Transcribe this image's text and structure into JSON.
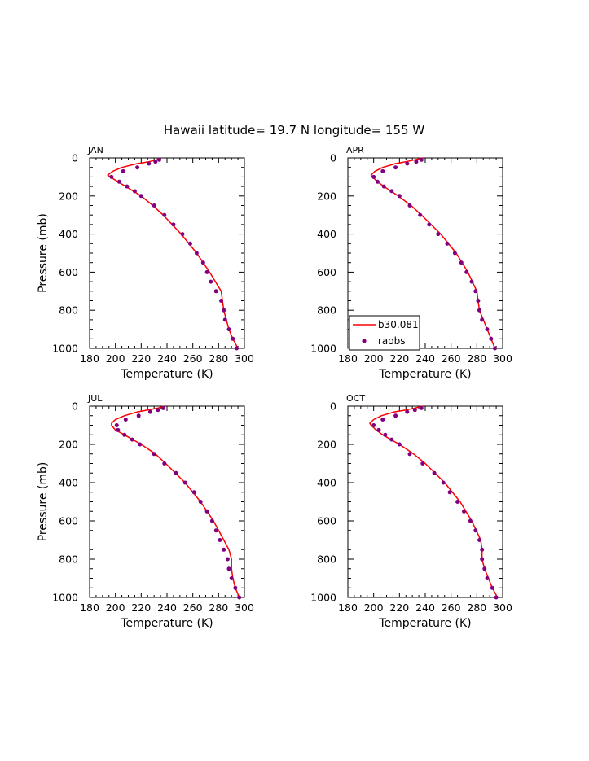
{
  "title": "Hawaii  latitude= 19.7 N longitude= 155 W",
  "colors": {
    "model": "#ff0000",
    "obs": "#800080",
    "axis": "#000000"
  },
  "legend": {
    "model_label": "b30.081",
    "obs_label": "raobs"
  },
  "chart_data": [
    {
      "type": "line",
      "panel": "JAN",
      "xlabel": "Temperature (K)",
      "ylabel": "Pressure (mb)",
      "xlim": [
        180,
        300
      ],
      "ylim": [
        1000,
        0
      ],
      "xticks": [
        180,
        200,
        220,
        240,
        260,
        280,
        300
      ],
      "yticks": [
        0,
        200,
        400,
        600,
        800,
        1000
      ],
      "series": [
        {
          "name": "b30.081",
          "kind": "line",
          "p": [
            0,
            10,
            20,
            30,
            50,
            70,
            90,
            100,
            125,
            150,
            200,
            250,
            300,
            400,
            500,
            600,
            700,
            750,
            800,
            850,
            900,
            950,
            1000
          ],
          "t": [
            235,
            232,
            226,
            217,
            205,
            198,
            194,
            196,
            202,
            208,
            220,
            229,
            237,
            251,
            263,
            273,
            282,
            283,
            284,
            286,
            288,
            291,
            295
          ]
        },
        {
          "name": "raobs",
          "kind": "scatter",
          "p": [
            10,
            20,
            30,
            50,
            70,
            100,
            125,
            150,
            175,
            200,
            250,
            300,
            350,
            400,
            450,
            500,
            550,
            600,
            650,
            700,
            750,
            800,
            850,
            900,
            950,
            1000
          ],
          "t": [
            234,
            231,
            226,
            217,
            206,
            197,
            203,
            209,
            215,
            220,
            230,
            238,
            245,
            252,
            258,
            263,
            268,
            271,
            274,
            278,
            282,
            284,
            285,
            288,
            291,
            294
          ]
        }
      ]
    },
    {
      "type": "line",
      "panel": "APR",
      "xlabel": "Temperature (K)",
      "ylabel": "Pressure (mb)",
      "xlim": [
        180,
        300
      ],
      "ylim": [
        1000,
        0
      ],
      "xticks": [
        180,
        200,
        220,
        240,
        260,
        280,
        300
      ],
      "yticks": [
        0,
        200,
        400,
        600,
        800,
        1000
      ],
      "series": [
        {
          "name": "b30.081",
          "kind": "line",
          "p": [
            0,
            10,
            20,
            30,
            50,
            70,
            90,
            100,
            125,
            150,
            200,
            250,
            300,
            400,
            500,
            600,
            700,
            750,
            800,
            850,
            900,
            950,
            1000
          ],
          "t": [
            238,
            232,
            225,
            217,
            207,
            201,
            198,
            199,
            203,
            208,
            219,
            229,
            237,
            252,
            264,
            273,
            280,
            281,
            282,
            285,
            288,
            291,
            294
          ]
        },
        {
          "name": "raobs",
          "kind": "scatter",
          "p": [
            10,
            20,
            30,
            50,
            70,
            100,
            125,
            150,
            175,
            200,
            250,
            300,
            350,
            400,
            450,
            500,
            550,
            600,
            650,
            700,
            750,
            800,
            850,
            900,
            950,
            1000
          ],
          "t": [
            237,
            233,
            226,
            217,
            207,
            200,
            203,
            208,
            214,
            220,
            228,
            236,
            243,
            250,
            257,
            263,
            268,
            272,
            276,
            279,
            281,
            282,
            284,
            288,
            291,
            294
          ]
        }
      ]
    },
    {
      "type": "line",
      "panel": "JUL",
      "xlabel": "Temperature (K)",
      "ylabel": "Pressure (mb)",
      "xlim": [
        180,
        300
      ],
      "ylim": [
        1000,
        0
      ],
      "xticks": [
        180,
        200,
        220,
        240,
        260,
        280,
        300
      ],
      "yticks": [
        0,
        200,
        400,
        600,
        800,
        1000
      ],
      "series": [
        {
          "name": "b30.081",
          "kind": "line",
          "p": [
            0,
            10,
            20,
            30,
            50,
            70,
            90,
            100,
            125,
            150,
            200,
            250,
            300,
            400,
            500,
            600,
            700,
            750,
            800,
            850,
            900,
            950,
            1000
          ],
          "t": [
            238,
            233,
            225,
            217,
            207,
            200,
            197,
            197,
            200,
            207,
            220,
            231,
            239,
            254,
            266,
            276,
            284,
            288,
            290,
            290,
            291,
            293,
            296
          ]
        },
        {
          "name": "raobs",
          "kind": "scatter",
          "p": [
            10,
            20,
            30,
            50,
            70,
            100,
            125,
            150,
            175,
            200,
            250,
            300,
            350,
            400,
            450,
            500,
            550,
            600,
            650,
            700,
            750,
            800,
            850,
            900,
            950,
            1000
          ],
          "t": [
            237,
            233,
            227,
            218,
            208,
            201,
            202,
            207,
            213,
            219,
            230,
            238,
            247,
            254,
            261,
            266,
            271,
            275,
            278,
            281,
            284,
            287,
            288,
            290,
            293,
            296
          ]
        }
      ]
    },
    {
      "type": "line",
      "panel": "OCT",
      "xlabel": "Temperature (K)",
      "ylabel": "Pressure (mb)",
      "xlim": [
        180,
        300
      ],
      "ylim": [
        1000,
        0
      ],
      "xticks": [
        180,
        200,
        220,
        240,
        260,
        280,
        300
      ],
      "yticks": [
        0,
        200,
        400,
        600,
        800,
        1000
      ],
      "series": [
        {
          "name": "b30.081",
          "kind": "line",
          "p": [
            0,
            10,
            20,
            30,
            50,
            70,
            90,
            100,
            125,
            150,
            200,
            250,
            300,
            400,
            500,
            600,
            700,
            750,
            800,
            850,
            900,
            950,
            1000
          ],
          "t": [
            238,
            232,
            225,
            216,
            206,
            200,
            197,
            198,
            202,
            207,
            220,
            231,
            240,
            255,
            267,
            276,
            283,
            284,
            284,
            286,
            289,
            292,
            296
          ]
        },
        {
          "name": "raobs",
          "kind": "scatter",
          "p": [
            10,
            20,
            30,
            50,
            70,
            100,
            125,
            150,
            175,
            200,
            250,
            300,
            350,
            400,
            450,
            500,
            550,
            600,
            650,
            700,
            750,
            800,
            850,
            900,
            950,
            1000
          ],
          "t": [
            237,
            232,
            226,
            217,
            207,
            200,
            204,
            209,
            214,
            220,
            228,
            238,
            247,
            254,
            259,
            265,
            270,
            275,
            279,
            282,
            284,
            284,
            286,
            288,
            292,
            295
          ]
        }
      ]
    }
  ]
}
